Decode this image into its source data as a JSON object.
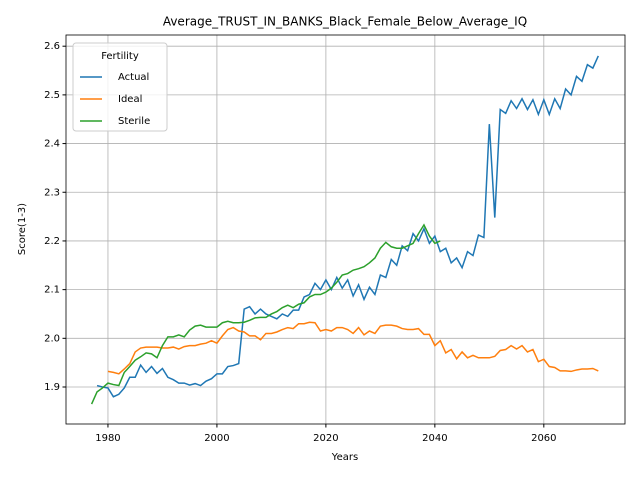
{
  "chart_data": {
    "type": "line",
    "title": "Average_TRUST_IN_BANKS_Black_Female_Below_Average_IQ",
    "x_label": "Years",
    "y_label": "Score(1-3)",
    "xlim": [
      1972.3,
      2074.9
    ],
    "ylim": [
      1.824,
      2.623
    ],
    "xticks": [
      1980,
      2000,
      2020,
      2040,
      2060
    ],
    "yticks": [
      1.9,
      {
        "value": 2,
        "label": "2.0"
      },
      2.1,
      2.2,
      2.3,
      2.4,
      2.5,
      2.6
    ],
    "grid": true,
    "legend_title": "Fertility",
    "legend_position": "upper left",
    "series": [
      {
        "name": "Actual",
        "color": "#1f77b4",
        "x": [
          1978,
          1979,
          1980,
          1981,
          1982,
          1983,
          1984,
          1985,
          1986,
          1987,
          1988,
          1989,
          1990,
          1991,
          1992,
          1993,
          1994,
          1995,
          1996,
          1997,
          1998,
          1999,
          2000,
          2001,
          2002,
          2003,
          2004,
          2005,
          2006,
          2007,
          2008,
          2009,
          2010,
          2011,
          2012,
          2013,
          2014,
          2015,
          2016,
          2017,
          2018,
          2019,
          2020,
          2021,
          2022,
          2023,
          2024,
          2025,
          2026,
          2027,
          2028,
          2029,
          2030,
          2031,
          2032,
          2033,
          2034,
          2035,
          2036,
          2037,
          2038,
          2039,
          2040,
          2041,
          2042,
          2043,
          2044,
          2045,
          2046,
          2047,
          2048,
          2049,
          2050,
          2051,
          2052,
          2053,
          2054,
          2055,
          2056,
          2057,
          2058,
          2059,
          2060,
          2061,
          2062,
          2063,
          2064,
          2065,
          2066,
          2067,
          2068,
          2069,
          2070
        ],
        "values": [
          1.903,
          1.9,
          1.898,
          1.88,
          1.885,
          1.898,
          1.92,
          1.92,
          1.945,
          1.93,
          1.942,
          1.928,
          1.938,
          1.92,
          1.915,
          1.908,
          1.908,
          1.904,
          1.907,
          1.903,
          1.912,
          1.917,
          1.927,
          1.927,
          1.942,
          1.944,
          1.948,
          2.06,
          2.065,
          2.05,
          2.06,
          2.05,
          2.045,
          2.04,
          2.05,
          2.045,
          2.058,
          2.058,
          2.085,
          2.09,
          2.113,
          2.1,
          2.12,
          2.1,
          2.125,
          2.103,
          2.12,
          2.087,
          2.11,
          2.08,
          2.105,
          2.09,
          2.13,
          2.125,
          2.162,
          2.15,
          2.19,
          2.18,
          2.215,
          2.2,
          2.225,
          2.195,
          2.21,
          2.178,
          2.185,
          2.155,
          2.165,
          2.145,
          2.178,
          2.17,
          2.212,
          2.207,
          2.44,
          2.248,
          2.47,
          2.462,
          2.488,
          2.472,
          2.492,
          2.47,
          2.49,
          2.46,
          2.49,
          2.46,
          2.492,
          2.472,
          2.512,
          2.5,
          2.538,
          2.528,
          2.562,
          2.555,
          2.58
        ]
      },
      {
        "name": "Ideal",
        "color": "#ff7f0e",
        "x": [
          1980,
          1981,
          1982,
          1983,
          1984,
          1985,
          1986,
          1987,
          1988,
          1989,
          1990,
          1991,
          1992,
          1993,
          1994,
          1995,
          1996,
          1997,
          1998,
          1999,
          2000,
          2001,
          2002,
          2003,
          2004,
          2005,
          2006,
          2007,
          2008,
          2009,
          2010,
          2011,
          2012,
          2013,
          2014,
          2015,
          2016,
          2017,
          2018,
          2019,
          2020,
          2021,
          2022,
          2023,
          2024,
          2025,
          2026,
          2027,
          2028,
          2029,
          2030,
          2031,
          2032,
          2033,
          2034,
          2035,
          2036,
          2037,
          2038,
          2039,
          2040,
          2041,
          2042,
          2043,
          2044,
          2045,
          2046,
          2047,
          2048,
          2049,
          2050,
          2051,
          2052,
          2053,
          2054,
          2055,
          2056,
          2057,
          2058,
          2059,
          2060,
          2061,
          2062,
          2063,
          2064,
          2065,
          2066,
          2067,
          2068,
          2069,
          2070
        ],
        "values": [
          1.932,
          1.93,
          1.927,
          1.937,
          1.948,
          1.972,
          1.98,
          1.982,
          1.982,
          1.982,
          1.98,
          1.98,
          1.982,
          1.978,
          1.983,
          1.985,
          1.985,
          1.988,
          1.99,
          1.995,
          1.99,
          2.005,
          2.018,
          2.022,
          2.015,
          2.013,
          2.005,
          2.005,
          1.997,
          2.01,
          2.01,
          2.013,
          2.018,
          2.022,
          2.02,
          2.03,
          2.03,
          2.033,
          2.032,
          2.015,
          2.018,
          2.015,
          2.022,
          2.022,
          2.018,
          2.01,
          2.022,
          2.007,
          2.015,
          2.01,
          2.025,
          2.027,
          2.027,
          2.025,
          2.02,
          2.018,
          2.018,
          2.02,
          2.008,
          2.008,
          1.985,
          1.995,
          1.97,
          1.977,
          1.958,
          1.972,
          1.96,
          1.965,
          1.96,
          1.96,
          1.96,
          1.963,
          1.975,
          1.977,
          1.985,
          1.978,
          1.985,
          1.972,
          1.977,
          1.952,
          1.957,
          1.942,
          1.94,
          1.933,
          1.933,
          1.932,
          1.935,
          1.937,
          1.937,
          1.938,
          1.933
        ]
      },
      {
        "name": "Sterile",
        "color": "#2ca02c",
        "x": [
          1977,
          1978,
          1979,
          1980,
          1981,
          1982,
          1983,
          1984,
          1985,
          1986,
          1987,
          1988,
          1989,
          1990,
          1991,
          1992,
          1993,
          1994,
          1995,
          1996,
          1997,
          1998,
          1999,
          2000,
          2001,
          2002,
          2003,
          2004,
          2005,
          2006,
          2007,
          2008,
          2009,
          2010,
          2011,
          2012,
          2013,
          2014,
          2015,
          2016,
          2017,
          2018,
          2019,
          2020,
          2021,
          2022,
          2023,
          2024,
          2025,
          2026,
          2027,
          2028,
          2029,
          2030,
          2031,
          2032,
          2033,
          2034,
          2035,
          2036,
          2037,
          2038,
          2039,
          2040,
          2041
        ],
        "values": [
          1.865,
          1.89,
          1.898,
          1.908,
          1.905,
          1.903,
          1.93,
          1.942,
          1.955,
          1.962,
          1.97,
          1.968,
          1.96,
          1.985,
          2.003,
          2.003,
          2.007,
          2.003,
          2.017,
          2.025,
          2.027,
          2.023,
          2.023,
          2.023,
          2.032,
          2.035,
          2.032,
          2.032,
          2.033,
          2.037,
          2.042,
          2.043,
          2.043,
          2.05,
          2.055,
          2.063,
          2.068,
          2.063,
          2.07,
          2.073,
          2.085,
          2.09,
          2.09,
          2.095,
          2.103,
          2.115,
          2.13,
          2.133,
          2.14,
          2.143,
          2.147,
          2.155,
          2.165,
          2.185,
          2.197,
          2.188,
          2.185,
          2.185,
          2.19,
          2.195,
          2.215,
          2.233,
          2.21,
          2.195,
          2.2
        ]
      }
    ]
  }
}
